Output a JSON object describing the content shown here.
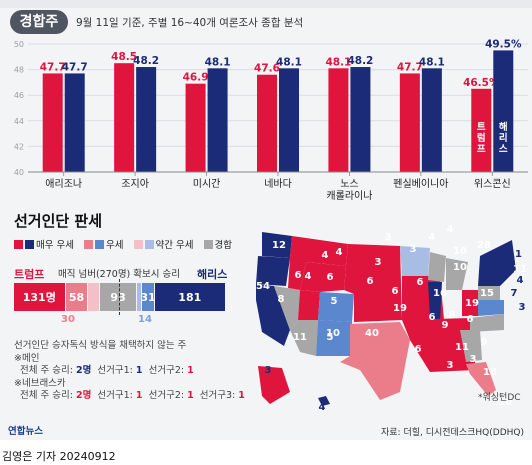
{
  "badge": "경합주",
  "subtitle": "9월 11일 기준, 주별 16~40개 여론조사 종합 분석",
  "chart_data": {
    "type": "bar",
    "categories": [
      "애리조나",
      "조지아",
      "미시간",
      "네바다",
      "노스 캐롤라이나",
      "펜실베이니아",
      "위스콘신"
    ],
    "series": [
      {
        "name": "트럼프",
        "values": [
          47.7,
          48.5,
          46.9,
          47.6,
          48.1,
          47.7,
          46.5
        ]
      },
      {
        "name": "해리스",
        "values": [
          47.7,
          48.2,
          48.1,
          48.1,
          48.2,
          48.1,
          49.5
        ]
      }
    ],
    "value_labels": [
      [
        "47.7",
        "47.7"
      ],
      [
        "48.5",
        "48.2"
      ],
      [
        "46.9",
        "48.1"
      ],
      [
        "47.6",
        "48.1"
      ],
      [
        "48.1",
        "48.2"
      ],
      [
        "47.7",
        "48.1"
      ],
      [
        "46.5%",
        "49.5%"
      ]
    ],
    "yticks": [
      "40",
      "42",
      "44",
      "46",
      "48",
      "50"
    ],
    "ylim": [
      40,
      50
    ],
    "grid": true,
    "in_bar_labels": [
      "트럼프",
      "해리스"
    ],
    "colors": {
      "trump": "#e0153e",
      "harris": "#1c2b78"
    }
  },
  "section": {
    "title": "선거인단 판세",
    "legend": [
      "매우 우세",
      "우세",
      "약간 우세",
      "경합"
    ],
    "legend_colors": [
      "#e0153e",
      "#eb7d8a",
      "#f3c0c8",
      "#a7a7a7"
    ],
    "trump_label": "트럼프",
    "harris_label": "해리스",
    "magic": "매직 넘버(270명) 확보시 승리"
  },
  "electoral": {
    "segments": [
      {
        "value": "131",
        "unit": "명",
        "count": 131,
        "color": "#e0153e"
      },
      {
        "value": "58",
        "unit": "",
        "count": 58,
        "color": "#eb7d8a"
      },
      {
        "value": "",
        "unit": "",
        "count": 30,
        "color": "#f3c0c8"
      },
      {
        "value": "93",
        "unit": "",
        "count": 93,
        "color": "#a7a7a7"
      },
      {
        "value": "",
        "unit": "",
        "count": 14,
        "color": "#a9bde4"
      },
      {
        "value": "31",
        "unit": "",
        "count": 31,
        "color": "#5b87cf"
      },
      {
        "value": "181",
        "unit": "",
        "count": 181,
        "color": "#1c2b78"
      }
    ],
    "sub_trump_lean": "30",
    "sub_harris_lean": "14"
  },
  "notes": {
    "line1": "선거인단 승자독식 방식을 채택하지 않는 주",
    "maine": "※메인",
    "maine_total_pre": "전체 주 승리: ",
    "maine_total": "2명",
    "maine_d1_pre": "선거구1: ",
    "maine_d1": "1",
    "maine_d2_pre": "선거구2: ",
    "maine_d2": "1",
    "nebraska": "※네브래스카",
    "neb_total_pre": "전체 주 승리: ",
    "neb_total": "2명",
    "neb_d1_pre": "선거구1: ",
    "neb_d1": "1",
    "neb_d2_pre": "선거구2: ",
    "neb_d2": "1",
    "neb_d3_pre": "선거구3: ",
    "neb_d3": "1"
  },
  "map": {
    "dc_note": "*워싱턴DC",
    "numbers": [
      "12",
      "8",
      "4",
      "4",
      "4",
      "3",
      "3",
      "4",
      "4",
      "3",
      "10",
      "11",
      "6",
      "6",
      "6",
      "6",
      "10",
      "5",
      "10",
      "16",
      "15",
      "19",
      "28",
      "19",
      "54",
      "6",
      "5",
      "40",
      "11",
      "9",
      "8",
      "6",
      "6",
      "6",
      "9",
      "11",
      "16",
      "3",
      "10",
      "3",
      "4",
      "3",
      "11",
      "4",
      "7",
      "3",
      "3",
      "4"
    ]
  },
  "footer": {
    "logo": "연합뉴스",
    "source": "자료: 더힐, 디시전데스크HQ(DDHQ)",
    "byline": "김영은 기자  20240912"
  }
}
